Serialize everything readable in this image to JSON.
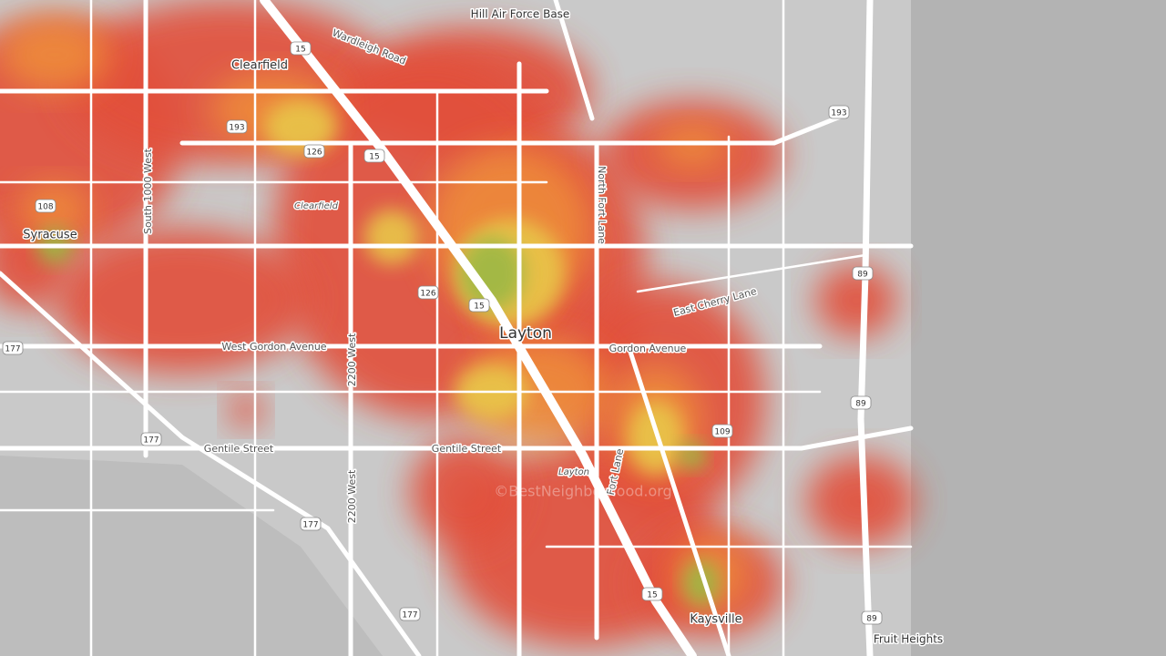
{
  "map": {
    "places": [
      "Hill Air Force Base",
      "Clearfield",
      "Syracuse",
      "Layton",
      "Kaysville",
      "Fruit Heights"
    ],
    "roads": [
      "Wardleigh Road",
      "South 1000 West",
      "North Fort Lane",
      "East Cherry Lane",
      "Gordon Avenue",
      "West Gordon Avenue",
      "2200 West",
      "2200 West",
      "Gentile Street",
      "Gentile Street",
      "Fort Lane"
    ],
    "area_labels": [
      "Clearfield",
      "Layton"
    ],
    "shields": [
      "15",
      "193",
      "126",
      "15",
      "108",
      "126",
      "15",
      "177",
      "177",
      "89",
      "89",
      "109",
      "177",
      "15",
      "177",
      "89",
      "193"
    ],
    "watermark": "©BestNeighborhood.org"
  }
}
